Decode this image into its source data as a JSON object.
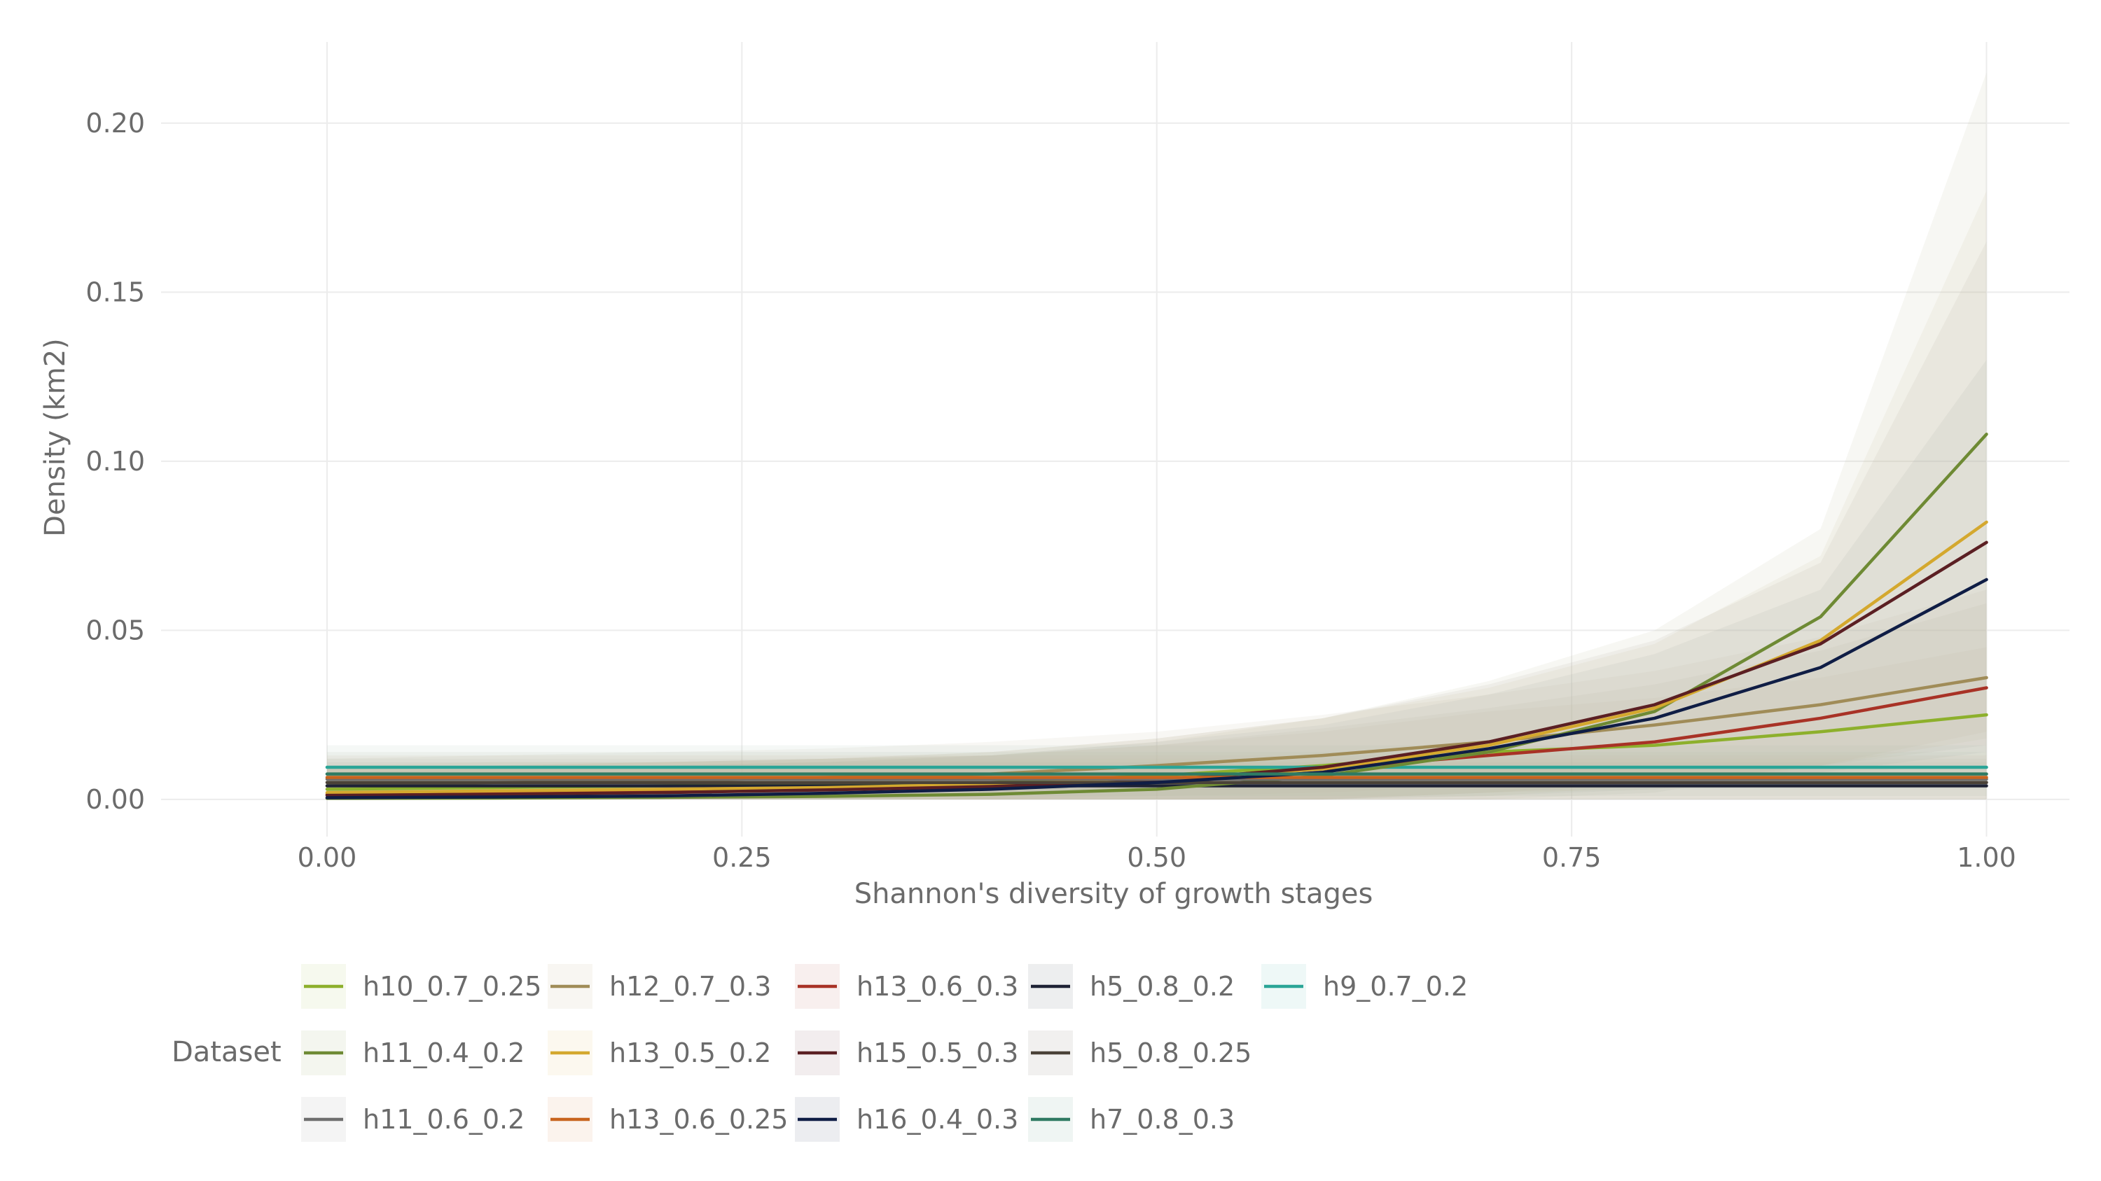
{
  "chart_data": {
    "type": "line",
    "xlabel": "Shannon's diversity of growth stages",
    "ylabel": "Density (km2)",
    "xlim": [
      -0.1,
      1.05
    ],
    "ylim": [
      -0.011,
      0.224
    ],
    "x_ticks": [
      0.0,
      0.25,
      0.5,
      0.75,
      1.0
    ],
    "x_tick_labels": [
      "0.00",
      "0.25",
      "0.50",
      "0.75",
      "1.00"
    ],
    "y_ticks": [
      0.0,
      0.05,
      0.1,
      0.15,
      0.2
    ],
    "y_tick_labels": [
      "0.00",
      "0.05",
      "0.10",
      "0.15",
      "0.20"
    ],
    "grid": true,
    "legend_title": "Dataset",
    "legend_position": "bottom",
    "x": [
      0.0,
      0.1,
      0.2,
      0.3,
      0.4,
      0.5,
      0.6,
      0.7,
      0.8,
      0.9,
      1.0
    ],
    "series": [
      {
        "name": "h10_0.7_0.25",
        "color": "#8db02c",
        "values": [
          0.003,
          0.0035,
          0.004,
          0.0045,
          0.005,
          0.007,
          0.01,
          0.014,
          0.016,
          0.02,
          0.025
        ],
        "band": [
          [
            0.0,
            0.01
          ],
          [
            0.0,
            0.011
          ],
          [
            0.0,
            0.011
          ],
          [
            0.0,
            0.012
          ],
          [
            0.0,
            0.013
          ],
          [
            0.0,
            0.016
          ],
          [
            0.0,
            0.02
          ],
          [
            0.002,
            0.026
          ],
          [
            0.003,
            0.03
          ],
          [
            0.004,
            0.036
          ],
          [
            0.005,
            0.045
          ]
        ]
      },
      {
        "name": "h12_0.7_0.3",
        "color": "#a08c58",
        "values": [
          0.004,
          0.005,
          0.0055,
          0.0065,
          0.0075,
          0.01,
          0.013,
          0.017,
          0.022,
          0.028,
          0.036
        ],
        "band": [
          [
            0.0,
            0.012
          ],
          [
            0.0,
            0.013
          ],
          [
            0.0,
            0.014
          ],
          [
            0.0,
            0.015
          ],
          [
            0.0,
            0.017
          ],
          [
            0.001,
            0.02
          ],
          [
            0.002,
            0.025
          ],
          [
            0.004,
            0.031
          ],
          [
            0.006,
            0.038
          ],
          [
            0.008,
            0.048
          ],
          [
            0.01,
            0.062
          ]
        ]
      },
      {
        "name": "h13_0.6_0.3",
        "color": "#a83226",
        "values": [
          0.0015,
          0.002,
          0.0025,
          0.003,
          0.004,
          0.006,
          0.009,
          0.013,
          0.017,
          0.024,
          0.033
        ],
        "band": [
          [
            0.0,
            0.009
          ],
          [
            0.0,
            0.01
          ],
          [
            0.0,
            0.011
          ],
          [
            0.0,
            0.012
          ],
          [
            0.0,
            0.013
          ],
          [
            0.0,
            0.016
          ],
          [
            0.0,
            0.021
          ],
          [
            0.002,
            0.027
          ],
          [
            0.004,
            0.034
          ],
          [
            0.006,
            0.044
          ],
          [
            0.008,
            0.058
          ]
        ]
      },
      {
        "name": "h5_0.8_0.2",
        "color": "#1e2235",
        "values": [
          0.004,
          0.004,
          0.004,
          0.004,
          0.004,
          0.004,
          0.004,
          0.004,
          0.004,
          0.004,
          0.004
        ],
        "band": [
          [
            0.0,
            0.01
          ],
          [
            0.0,
            0.01
          ],
          [
            0.0,
            0.01
          ],
          [
            0.0,
            0.01
          ],
          [
            0.0,
            0.01
          ],
          [
            0.0,
            0.01
          ],
          [
            0.0,
            0.01
          ],
          [
            0.0,
            0.01
          ],
          [
            0.0,
            0.01
          ],
          [
            0.0,
            0.01
          ],
          [
            0.0,
            0.01
          ]
        ]
      },
      {
        "name": "h9_0.7_0.2",
        "color": "#2aa597",
        "values": [
          0.0095,
          0.0095,
          0.0095,
          0.0095,
          0.0095,
          0.0095,
          0.0095,
          0.0095,
          0.0095,
          0.0095,
          0.0095
        ],
        "band": [
          [
            0.003,
            0.016
          ],
          [
            0.003,
            0.016
          ],
          [
            0.003,
            0.016
          ],
          [
            0.003,
            0.016
          ],
          [
            0.003,
            0.016
          ],
          [
            0.003,
            0.016
          ],
          [
            0.003,
            0.016
          ],
          [
            0.003,
            0.016
          ],
          [
            0.003,
            0.016
          ],
          [
            0.003,
            0.016
          ],
          [
            0.003,
            0.016
          ]
        ]
      },
      {
        "name": "h11_0.4_0.2",
        "color": "#6e8a34",
        "values": [
          0.0003,
          0.0004,
          0.0006,
          0.0009,
          0.0015,
          0.003,
          0.007,
          0.014,
          0.026,
          0.054,
          0.108
        ],
        "band": [
          [
            0.0,
            0.008
          ],
          [
            0.0,
            0.009
          ],
          [
            0.0,
            0.01
          ],
          [
            0.0,
            0.011
          ],
          [
            0.0,
            0.013
          ],
          [
            0.0,
            0.017
          ],
          [
            0.0,
            0.024
          ],
          [
            0.0,
            0.035
          ],
          [
            0.002,
            0.05
          ],
          [
            0.01,
            0.08
          ],
          [
            0.02,
            0.215
          ]
        ]
      },
      {
        "name": "h13_0.5_0.2",
        "color": "#d4a82e",
        "values": [
          0.002,
          0.0025,
          0.003,
          0.0035,
          0.0045,
          0.006,
          0.009,
          0.016,
          0.027,
          0.047,
          0.082
        ],
        "band": [
          [
            0.0,
            0.009
          ],
          [
            0.0,
            0.01
          ],
          [
            0.0,
            0.011
          ],
          [
            0.0,
            0.012
          ],
          [
            0.0,
            0.014
          ],
          [
            0.0,
            0.018
          ],
          [
            0.0,
            0.024
          ],
          [
            0.001,
            0.033
          ],
          [
            0.004,
            0.046
          ],
          [
            0.01,
            0.072
          ],
          [
            0.018,
            0.18
          ]
        ]
      },
      {
        "name": "h15_0.5_0.3",
        "color": "#5b1f23",
        "values": [
          0.0012,
          0.0015,
          0.002,
          0.0028,
          0.0038,
          0.0055,
          0.0095,
          0.017,
          0.028,
          0.046,
          0.076
        ],
        "band": [
          [
            0.0,
            0.009
          ],
          [
            0.0,
            0.01
          ],
          [
            0.0,
            0.011
          ],
          [
            0.0,
            0.012
          ],
          [
            0.0,
            0.014
          ],
          [
            0.0,
            0.018
          ],
          [
            0.0,
            0.024
          ],
          [
            0.002,
            0.034
          ],
          [
            0.005,
            0.047
          ],
          [
            0.01,
            0.07
          ],
          [
            0.016,
            0.165
          ]
        ]
      },
      {
        "name": "h5_0.8_0.25",
        "color": "#4a4238",
        "values": [
          0.005,
          0.005,
          0.005,
          0.005,
          0.005,
          0.005,
          0.005,
          0.005,
          0.005,
          0.005,
          0.005
        ],
        "band": [
          [
            0.0,
            0.011
          ],
          [
            0.0,
            0.011
          ],
          [
            0.0,
            0.011
          ],
          [
            0.0,
            0.011
          ],
          [
            0.0,
            0.011
          ],
          [
            0.0,
            0.011
          ],
          [
            0.0,
            0.011
          ],
          [
            0.0,
            0.011
          ],
          [
            0.0,
            0.011
          ],
          [
            0.0,
            0.011
          ],
          [
            0.0,
            0.011
          ]
        ]
      },
      {
        "name": "h11_0.6_0.2",
        "color": "#6e6e6e",
        "values": [
          0.006,
          0.006,
          0.006,
          0.006,
          0.006,
          0.006,
          0.006,
          0.006,
          0.006,
          0.006,
          0.006
        ],
        "band": [
          [
            0.0,
            0.012
          ],
          [
            0.0,
            0.012
          ],
          [
            0.0,
            0.012
          ],
          [
            0.0,
            0.012
          ],
          [
            0.0,
            0.012
          ],
          [
            0.0,
            0.012
          ],
          [
            0.0,
            0.012
          ],
          [
            0.0,
            0.012
          ],
          [
            0.0,
            0.012
          ],
          [
            0.0,
            0.012
          ],
          [
            0.0,
            0.012
          ]
        ]
      },
      {
        "name": "h13_0.6_0.25",
        "color": "#c8641e",
        "values": [
          0.0065,
          0.0065,
          0.0065,
          0.0065,
          0.0065,
          0.0065,
          0.0065,
          0.0065,
          0.0065,
          0.0065,
          0.0065
        ],
        "band": [
          [
            0.0,
            0.013
          ],
          [
            0.0,
            0.013
          ],
          [
            0.0,
            0.013
          ],
          [
            0.0,
            0.013
          ],
          [
            0.0,
            0.013
          ],
          [
            0.0,
            0.013
          ],
          [
            0.0,
            0.013
          ],
          [
            0.0,
            0.013
          ],
          [
            0.0,
            0.013
          ],
          [
            0.0,
            0.013
          ],
          [
            0.0,
            0.013
          ]
        ]
      },
      {
        "name": "h16_0.4_0.3",
        "color": "#0f1d45",
        "values": [
          0.0005,
          0.0007,
          0.001,
          0.0018,
          0.003,
          0.005,
          0.008,
          0.015,
          0.024,
          0.039,
          0.065
        ],
        "band": [
          [
            0.0,
            0.008
          ],
          [
            0.0,
            0.009
          ],
          [
            0.0,
            0.01
          ],
          [
            0.0,
            0.011
          ],
          [
            0.0,
            0.013
          ],
          [
            0.0,
            0.017
          ],
          [
            0.0,
            0.022
          ],
          [
            0.001,
            0.031
          ],
          [
            0.003,
            0.043
          ],
          [
            0.008,
            0.062
          ],
          [
            0.014,
            0.13
          ]
        ]
      },
      {
        "name": "h7_0.8_0.3",
        "color": "#2f7a62",
        "values": [
          0.0075,
          0.0075,
          0.0075,
          0.0075,
          0.0075,
          0.0075,
          0.0075,
          0.0075,
          0.0075,
          0.0075,
          0.0075
        ],
        "band": [
          [
            0.001,
            0.014
          ],
          [
            0.001,
            0.014
          ],
          [
            0.001,
            0.014
          ],
          [
            0.001,
            0.014
          ],
          [
            0.001,
            0.014
          ],
          [
            0.001,
            0.014
          ],
          [
            0.001,
            0.014
          ],
          [
            0.001,
            0.014
          ],
          [
            0.001,
            0.014
          ],
          [
            0.001,
            0.014
          ],
          [
            0.001,
            0.014
          ]
        ]
      }
    ],
    "legend_layout": [
      [
        "h10_0.7_0.25",
        "h12_0.7_0.3",
        "h13_0.6_0.3",
        "h5_0.8_0.2",
        "h9_0.7_0.2"
      ],
      [
        "h11_0.4_0.2",
        "h13_0.5_0.2",
        "h15_0.5_0.3",
        "h5_0.8_0.25"
      ],
      [
        "h11_0.6_0.2",
        "h13_0.6_0.25",
        "h16_0.4_0.3",
        "h7_0.8_0.3"
      ]
    ]
  }
}
